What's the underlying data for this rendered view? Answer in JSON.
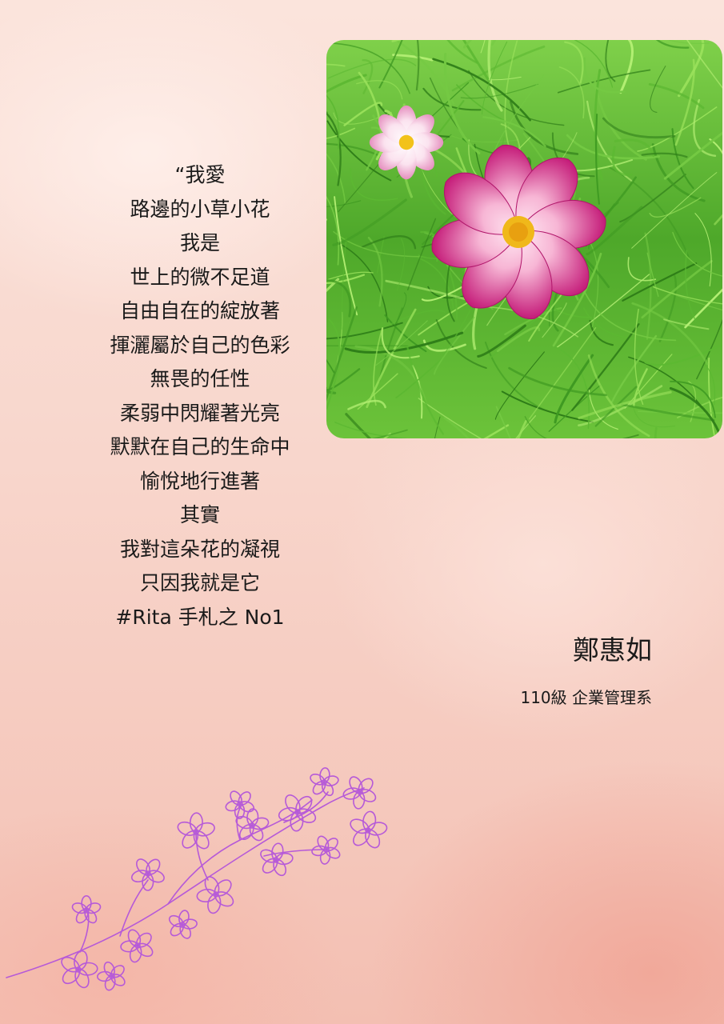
{
  "poem": {
    "lines": [
      "“我愛",
      "路邊的小草小花",
      "我是",
      "世上的微不足道",
      "自由自在的綻放著",
      "揮灑屬於自己的色彩",
      "無畏的任性",
      "柔弱中閃耀著光亮",
      "默默在自己的生命中",
      "愉悅地行進著",
      "其實",
      "我對這朵花的凝視",
      "只因我就是它",
      "#Rita 手札之 No1"
    ]
  },
  "author": {
    "name": "鄭惠如",
    "department": "110級 企業管理系"
  },
  "colors": {
    "background": "#f8d6cc",
    "petal": "#c81e7a",
    "grass": "#4fae2c",
    "branch_outline": "#b65ad8"
  },
  "photo": {
    "subject": "pink cosmos flower in grass"
  },
  "decoration": {
    "icon": "flowering-branch-icon"
  }
}
